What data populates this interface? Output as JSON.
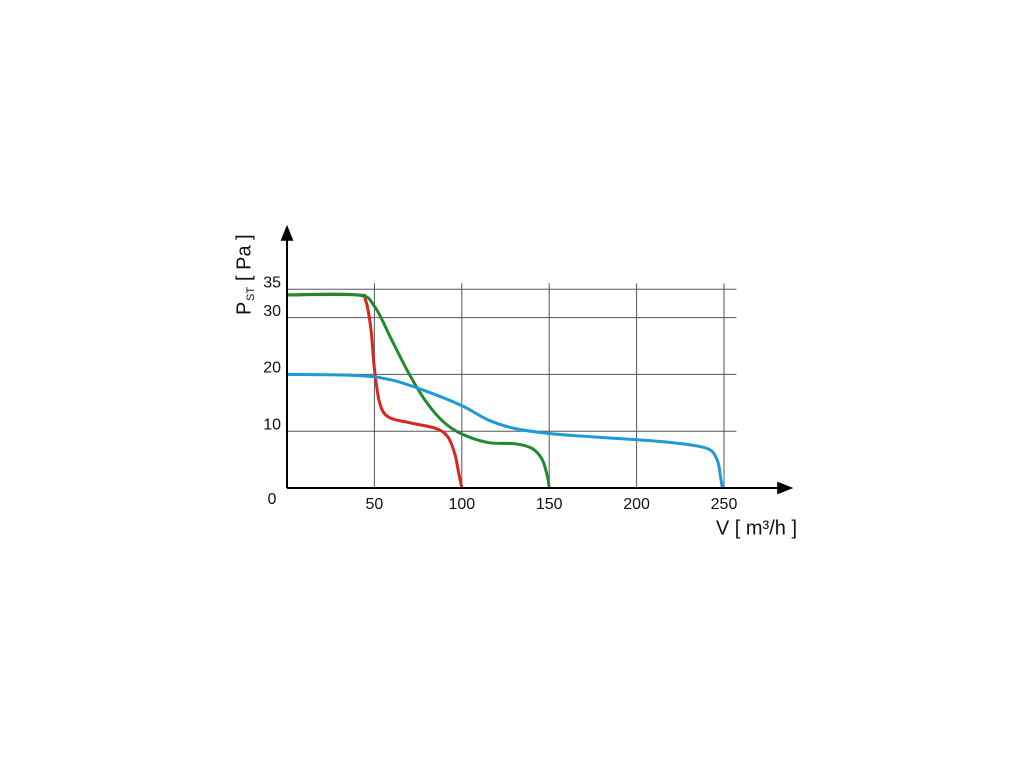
{
  "chart_data": {
    "type": "line",
    "xlabel": "V [ m³/h ]",
    "ylabel": {
      "main": "P",
      "sub": "ST",
      "unit": "[ Pa ]"
    },
    "origin_label": "0",
    "xlim": [
      0,
      280
    ],
    "ylim": [
      0,
      45
    ],
    "xticks": [
      50,
      100,
      150,
      200,
      250
    ],
    "yticks": [
      10,
      20,
      30,
      35
    ],
    "grid": true,
    "series": [
      {
        "name": "red",
        "color": "#d7261e",
        "x": [
          0,
          40,
          45,
          48,
          50,
          53,
          58,
          70,
          85,
          92,
          96,
          98,
          100
        ],
        "values": [
          34,
          34,
          33,
          28,
          21,
          15,
          12.5,
          11.5,
          10.5,
          9,
          6,
          3,
          0
        ]
      },
      {
        "name": "green",
        "color": "#1f8a2e",
        "x": [
          0,
          40,
          50,
          60,
          70,
          80,
          90,
          100,
          115,
          130,
          140,
          146,
          149,
          150
        ],
        "values": [
          34,
          34,
          32,
          26,
          20,
          15,
          11.5,
          9.5,
          8,
          7.8,
          7,
          5,
          2,
          0
        ]
      },
      {
        "name": "blue",
        "color": "#1e9ad6",
        "x": [
          0,
          40,
          60,
          80,
          100,
          115,
          130,
          150,
          175,
          200,
          220,
          240,
          246,
          248,
          249
        ],
        "values": [
          20,
          19.8,
          19,
          17,
          14.5,
          12,
          10.5,
          9.6,
          9,
          8.5,
          8,
          7,
          5,
          2,
          0
        ]
      }
    ]
  }
}
